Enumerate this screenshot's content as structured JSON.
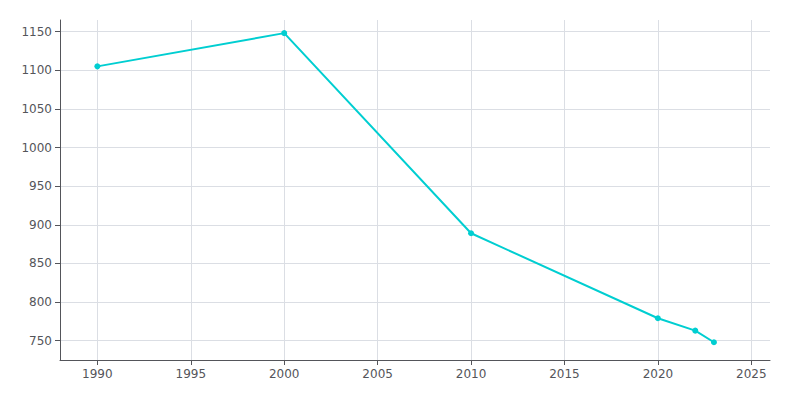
{
  "chart_data": {
    "type": "line",
    "x": [
      1990,
      2000,
      2010,
      2020,
      2022,
      2023
    ],
    "values": [
      1105,
      1148,
      889,
      779,
      763,
      748
    ],
    "color": "#00CED1",
    "marker": "circle",
    "xlim": [
      1988,
      2026
    ],
    "ylim": [
      725,
      1165
    ],
    "xticks": [
      1990,
      1995,
      2000,
      2005,
      2010,
      2015,
      2020,
      2025
    ],
    "yticks": [
      750,
      800,
      850,
      900,
      950,
      1000,
      1050,
      1100,
      1150
    ],
    "grid": true
  }
}
